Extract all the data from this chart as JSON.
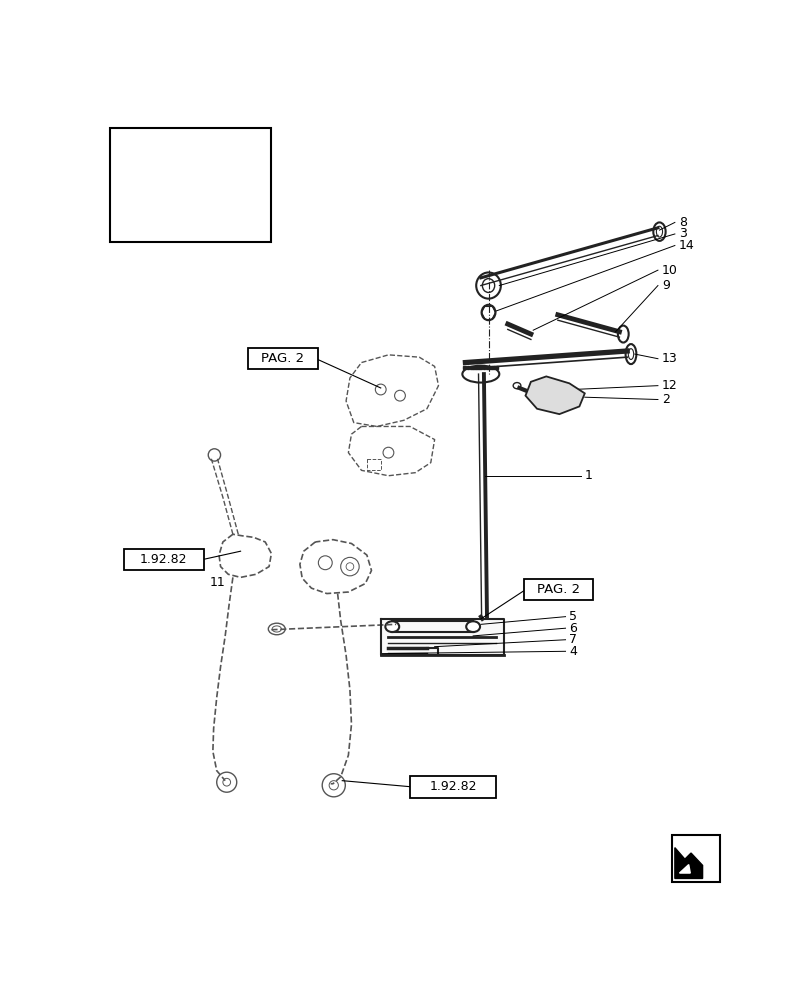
{
  "bg_color": "#ffffff",
  "fig_width": 8.12,
  "fig_height": 10.0,
  "dpi": 100,
  "color_main": "#222222",
  "color_part": "#555555",
  "color_dash": "#888888"
}
